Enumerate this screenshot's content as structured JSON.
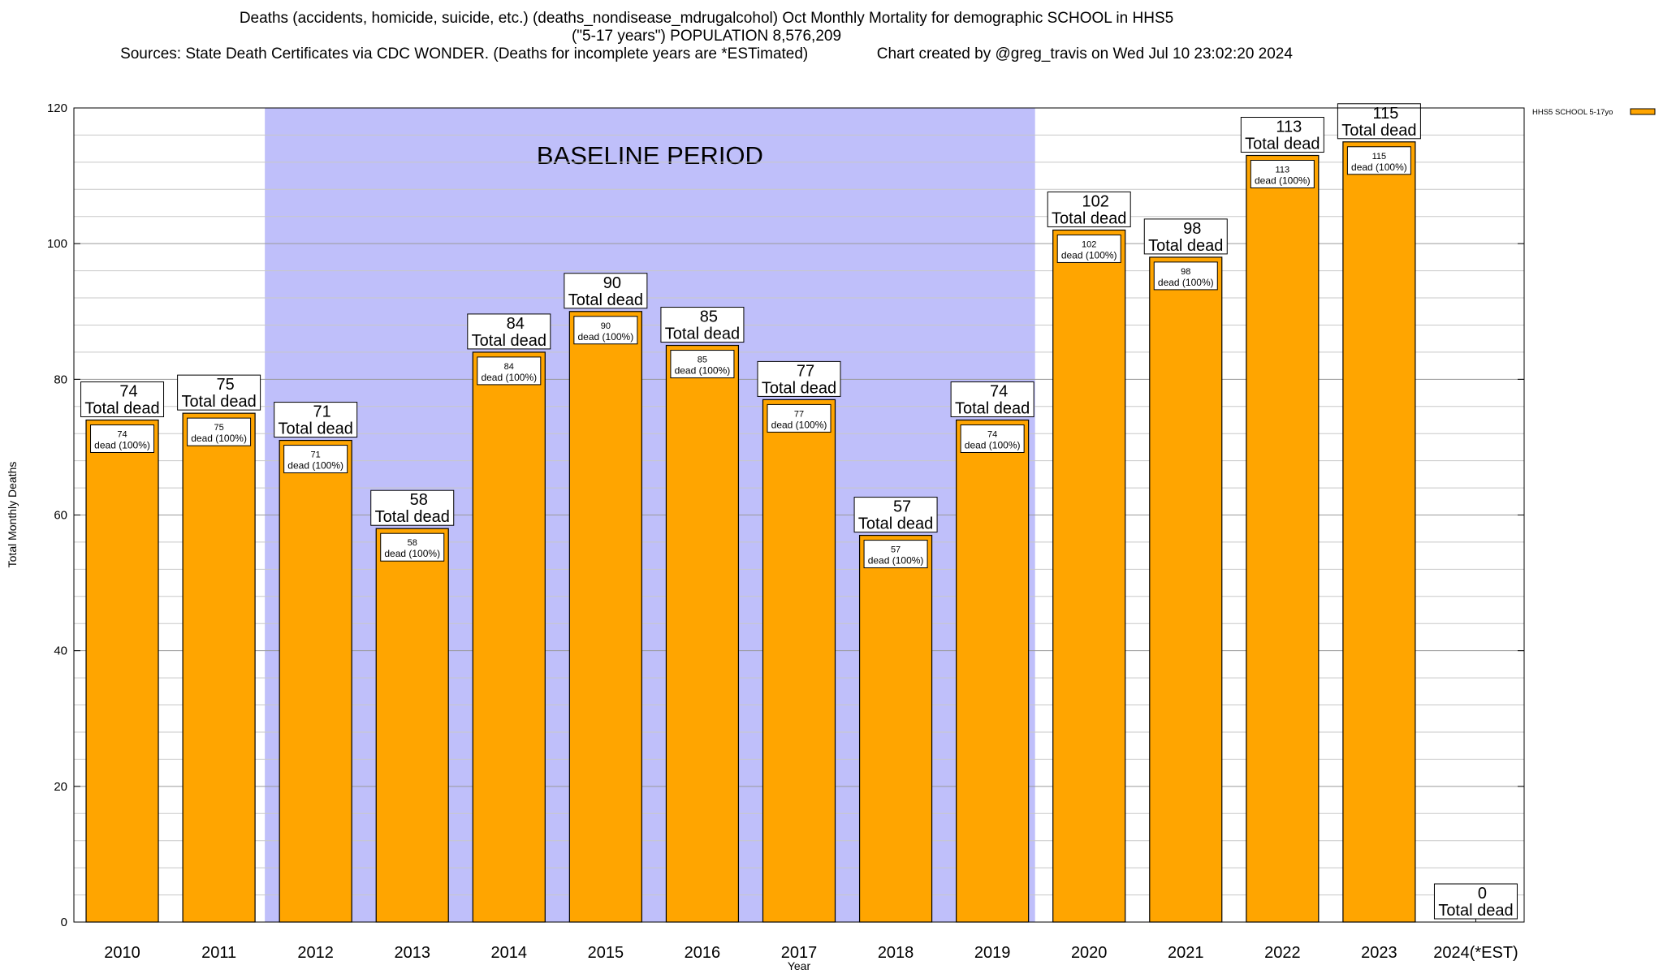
{
  "chart_data": {
    "type": "bar",
    "title": "Deaths (accidents, homicide, suicide, etc.) (deaths_nondisease_mdrugalcohol) Oct Monthly Mortality for demographic SCHOOL in HHS5",
    "subtitle": "(\"5-17 years\") POPULATION 8,576,209",
    "source_line": "Sources: State Death Certificates via CDC WONDER. (Deaths for incomplete years are *ESTimated)",
    "credit_line": "Chart created by @greg_travis on Wed Jul 10 23:02:20 2024",
    "xlabel": "Year",
    "ylabel": "Total Monthly Deaths",
    "ylim": [
      0,
      120
    ],
    "yticks": [
      0,
      20,
      40,
      60,
      80,
      100,
      120
    ],
    "categories": [
      "2010",
      "2011",
      "2012",
      "2013",
      "2014",
      "2015",
      "2016",
      "2017",
      "2018",
      "2019",
      "2020",
      "2021",
      "2022",
      "2023",
      "2024(*EST)"
    ],
    "series": [
      {
        "name": "HHS5 SCHOOL 5-17yo",
        "color": "#ffa500",
        "values": [
          74,
          75,
          71,
          58,
          84,
          90,
          85,
          77,
          57,
          74,
          102,
          98,
          113,
          115,
          0
        ]
      }
    ],
    "total_label_suffix": "Total dead",
    "inner_label_suffix": "dead (100%)",
    "baseline": {
      "label": "BASELINE PERIOD",
      "from": "2012",
      "to": "2019",
      "color": "#bfbffa"
    },
    "legend_position": "top-right",
    "grid": true
  }
}
